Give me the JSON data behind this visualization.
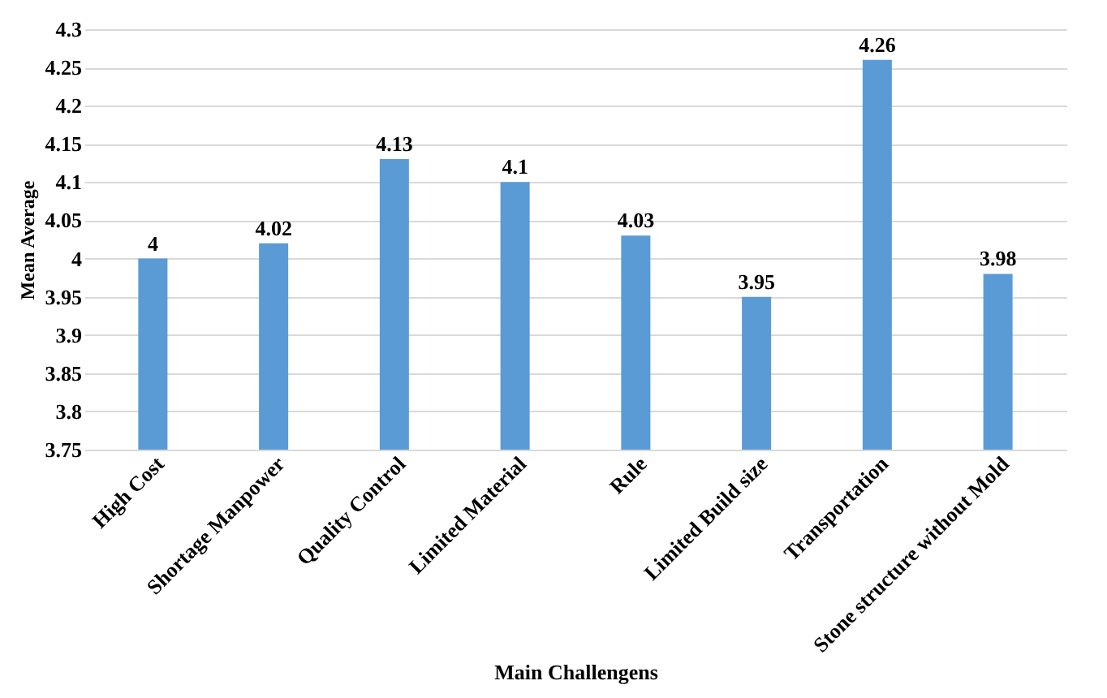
{
  "chart_data": {
    "type": "bar",
    "xlabel": "Main  Challengens",
    "ylabel": "Mean Average",
    "categories": [
      "High Cost",
      "Shortage Manpower",
      "Quality Control",
      "Limited Material",
      "Rule",
      "Limited Build size",
      "Transportation",
      "Stone structure without Mold"
    ],
    "values": [
      4,
      4.02,
      4.13,
      4.1,
      4.03,
      3.95,
      4.26,
      3.98
    ],
    "color": "#5b9bd5",
    "ylim": [
      3.75,
      4.3
    ],
    "yticks": [
      3.75,
      3.8,
      3.85,
      3.9,
      3.95,
      4,
      4.05,
      4.1,
      4.15,
      4.2,
      4.25,
      4.3
    ],
    "grid": "y",
    "data_labels": true
  }
}
